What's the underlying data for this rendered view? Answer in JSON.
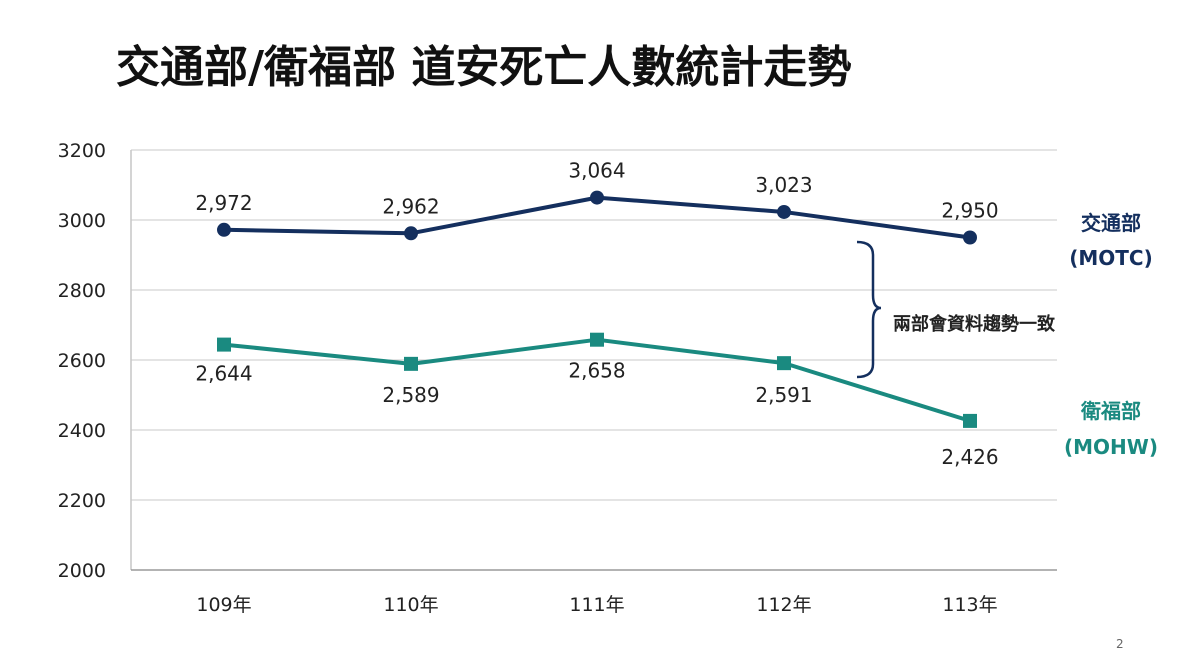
{
  "chart_data": {
    "type": "line",
    "title": "交通部/衛福部 道安死亡人數統計走勢",
    "categories": [
      "109年",
      "110年",
      "111年",
      "112年",
      "113年"
    ],
    "ylim": [
      2000,
      3200
    ],
    "yticks": [
      2000,
      2200,
      2400,
      2600,
      2800,
      3000,
      3200
    ],
    "grid": true,
    "series": [
      {
        "label_line1": "交通部",
        "label_line2": "(MOTC)",
        "color": "#142f5e",
        "marker": "circle",
        "values": [
          2972,
          2962,
          3064,
          3023,
          2950
        ],
        "value_labels": [
          "2,972",
          "2,962",
          "3,064",
          "3,023",
          "2,950"
        ]
      },
      {
        "label_line1": "衛福部",
        "label_line2": "(MOHW)",
        "color": "#1a8a80",
        "marker": "square",
        "values": [
          2644,
          2589,
          2658,
          2591,
          2426
        ],
        "value_labels": [
          "2,644",
          "2,589",
          "2,658",
          "2,591",
          "2,426"
        ]
      }
    ],
    "annotation": "兩部會資料趨勢一致"
  },
  "page_number": "2"
}
